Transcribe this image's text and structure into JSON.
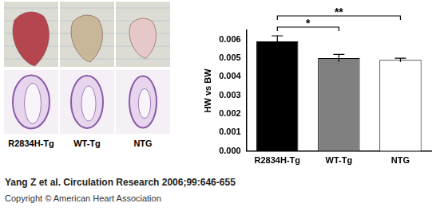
{
  "chart_data": {
    "type": "bar",
    "y_label": "HW vs BW",
    "categories": [
      "R2834H-Tg",
      "WT-Tg",
      "NTG"
    ],
    "values": [
      0.0059,
      0.005,
      0.0049
    ],
    "errors": [
      0.0003,
      0.0002,
      0.0001
    ],
    "colors": [
      "#000000",
      "#808080",
      "#ffffff"
    ],
    "ylim": [
      0,
      0.0065
    ],
    "yticks": [
      {
        "value": 0,
        "label": "0.000"
      },
      {
        "value": 0.001,
        "label": "0.001"
      },
      {
        "value": 0.002,
        "label": "0.002"
      },
      {
        "value": 0.003,
        "label": "0.003"
      },
      {
        "value": 0.004,
        "label": "0.004"
      },
      {
        "value": 0.005,
        "label": "0.005"
      },
      {
        "value": 0.006,
        "label": "0.006"
      }
    ],
    "grid": false,
    "annotations": [
      {
        "text": "*",
        "from": "R2834H-Tg",
        "to": "WT-Tg"
      },
      {
        "text": "**",
        "from": "R2834H-Tg",
        "to": "NTG"
      }
    ]
  },
  "photo_panel": {
    "labels": [
      "R2834H-Tg",
      "WT-Tg",
      "NTG"
    ]
  },
  "caption": {
    "citation": "Yang Z et al. Circulation Research 2006;99:646-655",
    "copyright": "Copyright © American Heart Association"
  }
}
